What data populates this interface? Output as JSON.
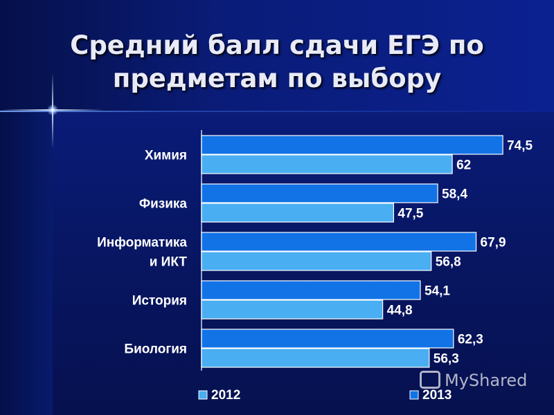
{
  "slide": {
    "title_line1": "Средний балл сдачи ЕГЭ по",
    "title_line2": "предметам по выбору"
  },
  "colors": {
    "bar_2012": "#4aaef2",
    "bar_2013": "#1273e6",
    "background": "#0a1a6e",
    "text": "#ffffff"
  },
  "watermark": {
    "text": "MyShared",
    "icon": "presentation-icon"
  },
  "chart_data": {
    "type": "bar",
    "orientation": "horizontal",
    "categories": [
      [
        "Химия"
      ],
      [
        "Физика"
      ],
      [
        "Информатика",
        "и ИКТ"
      ],
      [
        "История"
      ],
      [
        "Биология"
      ]
    ],
    "series": [
      {
        "name": "2013",
        "values": [
          "74,5",
          "58,4",
          "67,9",
          "54,1",
          "62,3"
        ]
      },
      {
        "name": "2012",
        "values": [
          "62",
          "47,5",
          "56,8",
          "44,8",
          "56,3"
        ]
      }
    ],
    "legend": {
      "labels": [
        "2012",
        "2013"
      ],
      "position": "bottom"
    },
    "xlim": [
      0,
      100
    ],
    "grid": false
  }
}
